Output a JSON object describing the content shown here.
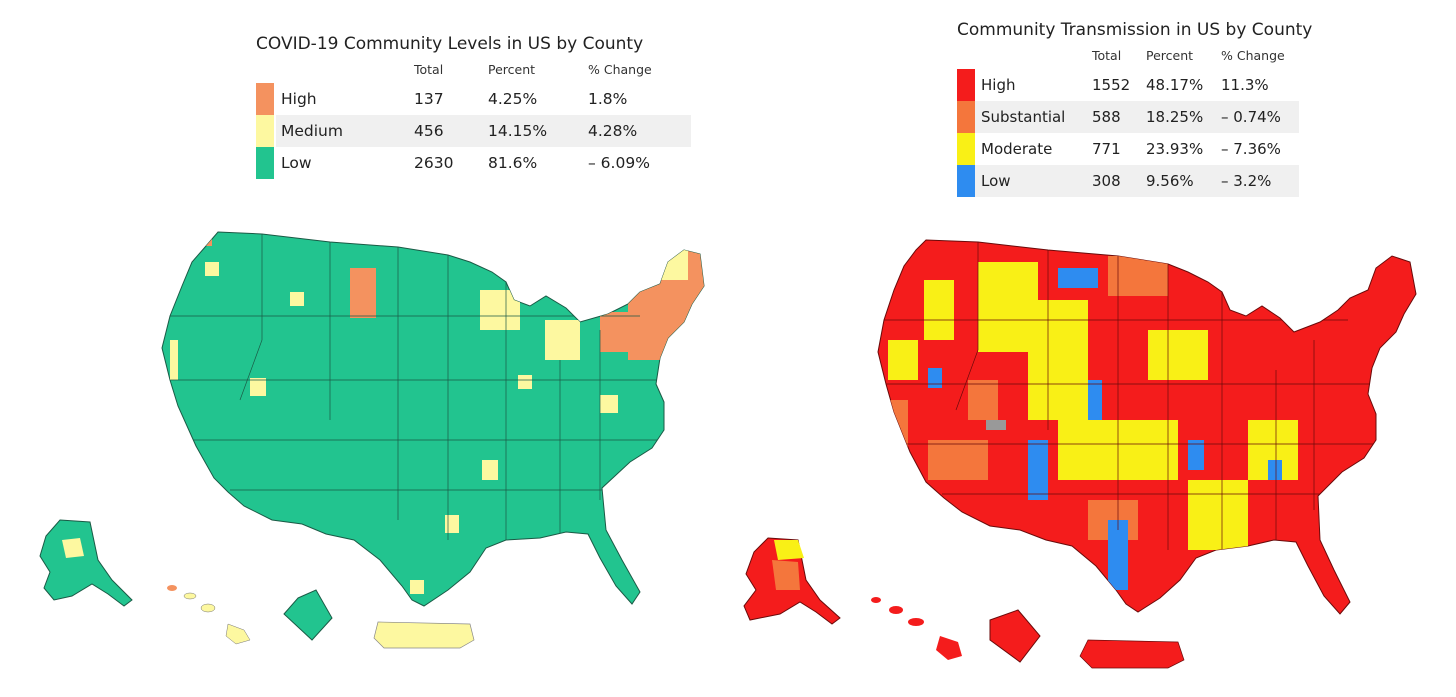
{
  "left": {
    "title": "COVID-19 Community Levels in US by County",
    "headers": [
      "Total",
      "Percent",
      "% Change"
    ],
    "rows": [
      {
        "label": "High",
        "total": "137",
        "percent": "4.25%",
        "change": "1.8%",
        "color": "#f4925f"
      },
      {
        "label": "Medium",
        "total": "456",
        "percent": "14.15%",
        "change": "4.28%",
        "color": "#fdf8a0"
      },
      {
        "label": "Low",
        "total": "2630",
        "percent": "81.6%",
        "change": "– 6.09%",
        "color": "#22c48f"
      }
    ]
  },
  "right": {
    "title": "Community Transmission in US by County",
    "headers": [
      "Total",
      "Percent",
      "% Change"
    ],
    "rows": [
      {
        "label": "High",
        "total": "1552",
        "percent": "48.17%",
        "change": "11.3%",
        "color": "#f41c1c"
      },
      {
        "label": "Substantial",
        "total": "588",
        "percent": "18.25%",
        "change": "– 0.74%",
        "color": "#f4763c"
      },
      {
        "label": "Moderate",
        "total": "771",
        "percent": "23.93%",
        "change": "– 7.36%",
        "color": "#f9f016"
      },
      {
        "label": "Low",
        "total": "308",
        "percent": "9.56%",
        "change": "– 3.2%",
        "color": "#2e8cf0"
      }
    ]
  }
}
